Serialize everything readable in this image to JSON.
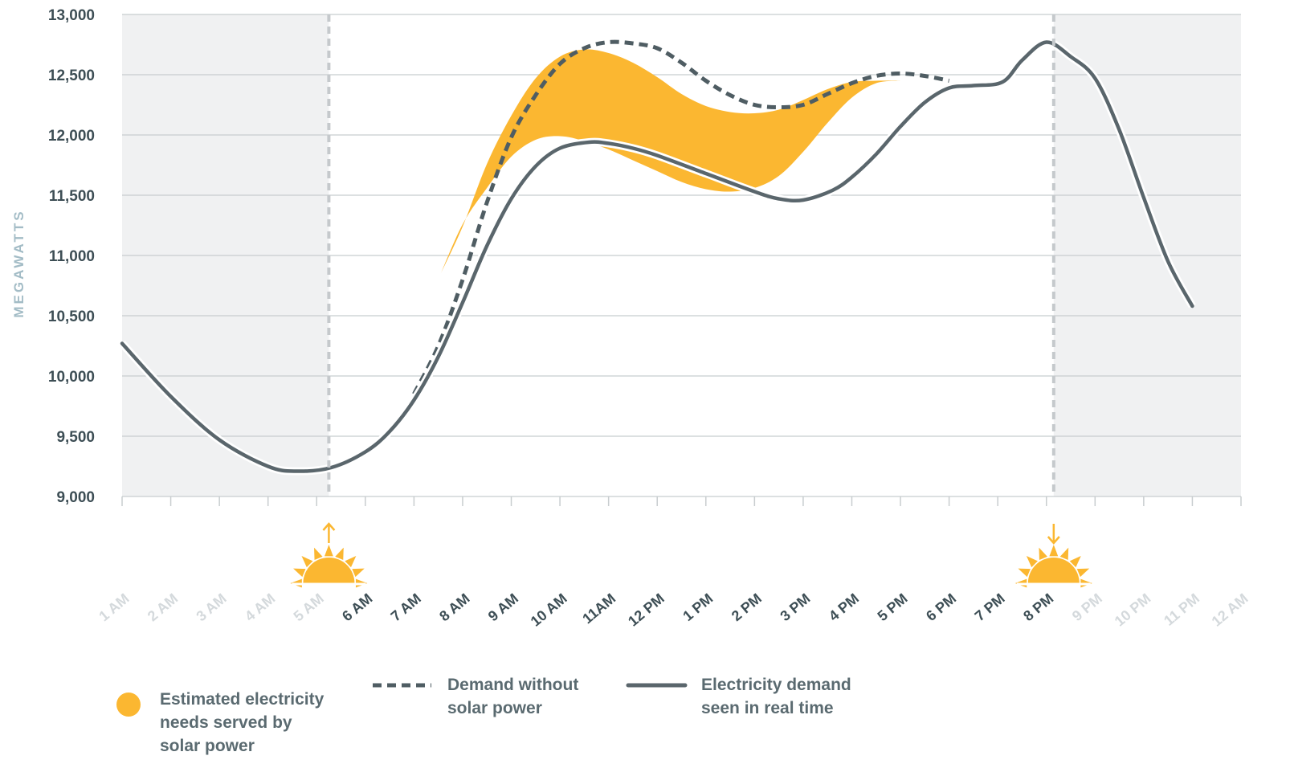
{
  "chart_data": {
    "type": "line",
    "title": "",
    "ylabel": "MEGAWATTS",
    "xlabel": "",
    "ylim": [
      9000,
      13000
    ],
    "yticks": [
      9000,
      9500,
      10000,
      10500,
      11000,
      11500,
      12000,
      12500,
      13000
    ],
    "ytick_labels": [
      "9,000",
      "9,500",
      "10,000",
      "10,500",
      "11,000",
      "11,500",
      "12,000",
      "12,500",
      "13,000"
    ],
    "categories": [
      "1 AM",
      "2 AM",
      "3 AM",
      "4 AM",
      "5 AM",
      "6 AM",
      "7 AM",
      "8 AM",
      "9 AM",
      "10 AM",
      "11AM",
      "12 PM",
      "1 PM",
      "2 PM",
      "3 PM",
      "4 PM",
      "5 PM",
      "6 PM",
      "7 PM",
      "8 PM",
      "9 PM",
      "10 PM",
      "11 PM",
      "12 AM"
    ],
    "daylight_categories": [
      "6 AM",
      "7 AM",
      "8 AM",
      "9 AM",
      "10 AM",
      "11AM",
      "12 PM",
      "1 PM",
      "2 PM",
      "3 PM",
      "4 PM",
      "5 PM",
      "6 PM",
      "7 PM",
      "8 PM"
    ],
    "sunrise_hour": 5.25,
    "sunset_hour": 20.15,
    "grid": true,
    "legend_placement": "bottom",
    "series": [
      {
        "name": "Electricity demand seen in real time",
        "style": "solid",
        "color": "#5a666c",
        "points": [
          [
            1,
            10270
          ],
          [
            2,
            9830
          ],
          [
            3,
            9470
          ],
          [
            4,
            9250
          ],
          [
            4.6,
            9210
          ],
          [
            5.3,
            9240
          ],
          [
            6,
            9370
          ],
          [
            6.5,
            9540
          ],
          [
            7,
            9800
          ],
          [
            7.5,
            10160
          ],
          [
            8,
            10610
          ],
          [
            8.5,
            11080
          ],
          [
            9,
            11470
          ],
          [
            9.5,
            11740
          ],
          [
            10,
            11890
          ],
          [
            10.6,
            11940
          ],
          [
            11,
            11930
          ],
          [
            11.5,
            11890
          ],
          [
            12,
            11830
          ],
          [
            13,
            11680
          ],
          [
            14,
            11530
          ],
          [
            14.5,
            11470
          ],
          [
            15,
            11460
          ],
          [
            15.6,
            11540
          ],
          [
            16,
            11650
          ],
          [
            16.5,
            11840
          ],
          [
            17,
            12070
          ],
          [
            17.5,
            12270
          ],
          [
            18,
            12390
          ],
          [
            18.5,
            12410
          ],
          [
            19.1,
            12440
          ],
          [
            19.5,
            12620
          ],
          [
            20,
            12770
          ],
          [
            20.5,
            12650
          ],
          [
            21,
            12470
          ],
          [
            21.5,
            12040
          ],
          [
            22,
            11480
          ],
          [
            22.5,
            10950
          ],
          [
            23,
            10580
          ]
        ]
      },
      {
        "name": "Demand without solar power",
        "style": "dashed",
        "color": "#4f5d63",
        "points": [
          [
            7,
            9850
          ],
          [
            7.5,
            10250
          ],
          [
            8,
            10800
          ],
          [
            8.5,
            11440
          ],
          [
            9,
            11980
          ],
          [
            9.5,
            12330
          ],
          [
            10,
            12590
          ],
          [
            10.5,
            12720
          ],
          [
            11,
            12770
          ],
          [
            11.5,
            12760
          ],
          [
            12,
            12720
          ],
          [
            12.5,
            12600
          ],
          [
            13,
            12450
          ],
          [
            13.5,
            12330
          ],
          [
            14,
            12250
          ],
          [
            14.5,
            12230
          ],
          [
            15,
            12250
          ],
          [
            15.5,
            12340
          ],
          [
            16,
            12430
          ],
          [
            16.5,
            12490
          ],
          [
            17,
            12510
          ],
          [
            17.5,
            12490
          ],
          [
            18,
            12450
          ]
        ]
      }
    ],
    "area": {
      "name": "Estimated electricity needs served by solar power",
      "color": "#fbb731",
      "upper": [
        [
          7.55,
          10850
        ],
        [
          8,
          11240
        ],
        [
          8.5,
          11760
        ],
        [
          9,
          12160
        ],
        [
          9.5,
          12470
        ],
        [
          10,
          12650
        ],
        [
          10.5,
          12710
        ],
        [
          11,
          12680
        ],
        [
          11.5,
          12600
        ],
        [
          12,
          12480
        ],
        [
          12.5,
          12340
        ],
        [
          13,
          12240
        ],
        [
          13.5,
          12190
        ],
        [
          14,
          12180
        ],
        [
          14.5,
          12210
        ],
        [
          15,
          12290
        ],
        [
          15.5,
          12380
        ],
        [
          16,
          12440
        ],
        [
          16.5,
          12450
        ],
        [
          17,
          12450
        ]
      ],
      "lower": [
        [
          7.55,
          10850
        ],
        [
          8,
          11260
        ],
        [
          8.5,
          11560
        ],
        [
          9,
          11820
        ],
        [
          9.5,
          11960
        ],
        [
          10,
          11990
        ],
        [
          10.5,
          11950
        ],
        [
          11,
          11880
        ],
        [
          11.5,
          11790
        ],
        [
          12,
          11700
        ],
        [
          12.5,
          11610
        ],
        [
          13,
          11550
        ],
        [
          13.5,
          11530
        ],
        [
          14,
          11560
        ],
        [
          14.5,
          11660
        ],
        [
          15,
          11860
        ],
        [
          15.5,
          12100
        ],
        [
          16,
          12310
        ],
        [
          16.5,
          12430
        ],
        [
          17,
          12450
        ]
      ]
    },
    "colors": {
      "night_shade": "#f0f1f2",
      "grid": "#c8cdcf",
      "sun": "#fbb731",
      "sun_line": "#c5c9cc",
      "tick_label": "#3d4e55",
      "tick_label_night": "#d4d9dc",
      "ytick_label": "#3d4e55",
      "ylabel": "#a3bcc6"
    }
  },
  "legend": {
    "items": [
      {
        "lines": [
          "Estimated electricity",
          "needs served by",
          "solar power"
        ]
      },
      {
        "lines": [
          "Demand without",
          "solar power"
        ]
      },
      {
        "lines": [
          "Electricity demand",
          "seen in real time"
        ]
      }
    ]
  }
}
